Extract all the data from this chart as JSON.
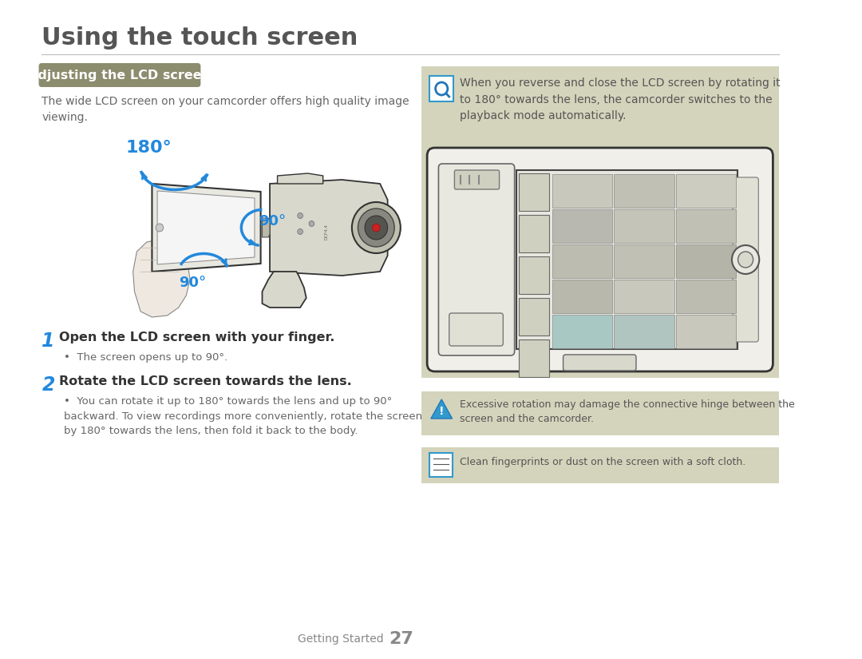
{
  "title": "Using the touch screen",
  "title_color": "#555555",
  "title_fontsize": 22,
  "divider_color": "#bbbbbb",
  "background_color": "#ffffff",
  "section_header_text": "Adjusting the LCD screen",
  "section_header_bg": "#8c8c6e",
  "section_header_text_color": "#ffffff",
  "section_header_fontsize": 11.5,
  "body_text_color": "#666666",
  "body_fontsize": 10,
  "desc_text": "The wide LCD screen on your camcorder offers high quality image\nviewing.",
  "angle_color": "#2288dd",
  "angle_180_label": "180°",
  "angle_90a_label": "90°",
  "angle_90b_label": "90°",
  "step1_num": "1",
  "step1_text": "Open the LCD screen with your finger.",
  "step1_bullet": "The screen opens up to 90°.",
  "step2_num": "2",
  "step2_text": "Rotate the LCD screen towards the lens.",
  "step2_bullet": "You can rotate it up to 180° towards the lens and up to 90°\nbackward. To view recordings more conveniently, rotate the screen\nby 180° towards the lens, then fold it back to the body.",
  "right_panel_bg": "#d4d4bc",
  "right_info_text": "When you reverse and close the LCD screen by rotating it\nto 180° towards the lens, the camcorder switches to the\nplayback mode automatically.",
  "warning_bg": "#d4d4bc",
  "warning_text": "Excessive rotation may damage the connective hinge between the\nscreen and the camcorder.",
  "note_bg": "#d4d4bc",
  "note_text": "Clean fingerprints or dust on the screen with a soft cloth.",
  "footer_text": "Getting Started",
  "footer_num": "27",
  "footer_color": "#888888",
  "footer_fontsize": 9
}
